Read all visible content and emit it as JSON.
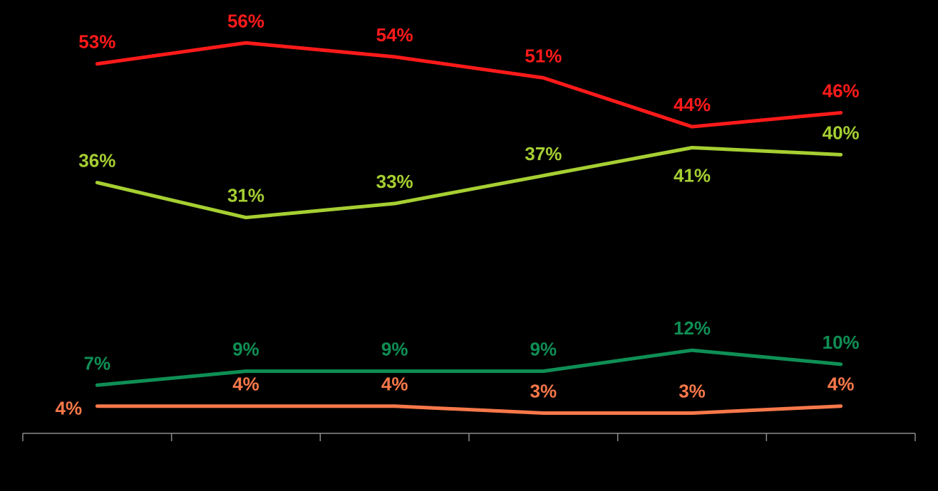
{
  "chart_data": {
    "type": "line",
    "categories": [
      "",
      "",
      "",
      "",
      "",
      ""
    ],
    "ylim": [
      0,
      60
    ],
    "grid": false,
    "legend": "none",
    "series": [
      {
        "color": "#ff1a1a",
        "values": [
          53,
          56,
          54,
          51,
          44,
          46
        ],
        "labels": [
          "53%",
          "56%",
          "54%",
          "51%",
          "44%",
          "46%"
        ]
      },
      {
        "color": "#a6cf32",
        "values": [
          36,
          31,
          33,
          37,
          41,
          40
        ],
        "labels": [
          "36%",
          "31%",
          "33%",
          "37%",
          "41%",
          "40%"
        ]
      },
      {
        "color": "#0f8f55",
        "values": [
          7,
          9,
          9,
          9,
          12,
          10
        ],
        "labels": [
          "7%",
          "9%",
          "9%",
          "9%",
          "12%",
          "10%"
        ]
      },
      {
        "color": "#f7784a",
        "values": [
          4,
          4,
          4,
          3,
          3,
          4
        ],
        "labels": [
          "4%",
          "4%",
          "4%",
          "3%",
          "3%",
          "4%"
        ]
      }
    ]
  }
}
